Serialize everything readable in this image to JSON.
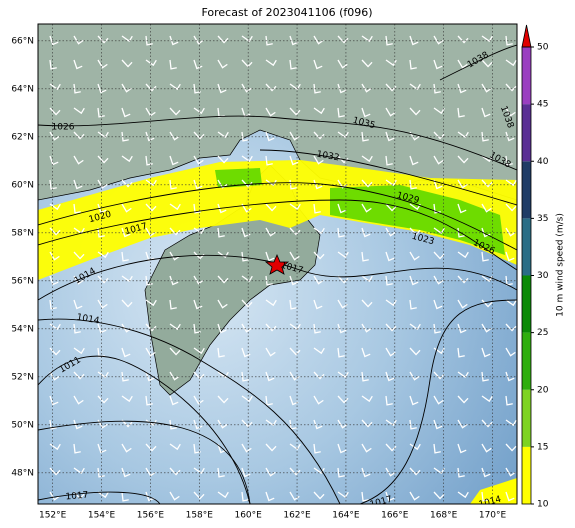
{
  "title": "Forecast of 2023041106 (f096)",
  "map": {
    "xlim": [
      151.4,
      171.0
    ],
    "ylim": [
      46.7,
      66.7
    ],
    "lon_ticks": [
      {
        "value": 152,
        "label": "152°E"
      },
      {
        "value": 154,
        "label": "154°E"
      },
      {
        "value": 156,
        "label": "156°E"
      },
      {
        "value": 158,
        "label": "158°E"
      },
      {
        "value": 160,
        "label": "160°E"
      },
      {
        "value": 162,
        "label": "162°E"
      },
      {
        "value": 164,
        "label": "164°E"
      },
      {
        "value": 166,
        "label": "166°E"
      },
      {
        "value": 168,
        "label": "168°E"
      },
      {
        "value": 170,
        "label": "170°E"
      }
    ],
    "lat_ticks": [
      {
        "value": 48,
        "label": "48°N"
      },
      {
        "value": 50,
        "label": "50°N"
      },
      {
        "value": 52,
        "label": "52°N"
      },
      {
        "value": 54,
        "label": "54°N"
      },
      {
        "value": 56,
        "label": "56°N"
      },
      {
        "value": 58,
        "label": "58°N"
      },
      {
        "value": 60,
        "label": "60°N"
      },
      {
        "value": 62,
        "label": "62°N"
      },
      {
        "value": 64,
        "label": "64°N"
      },
      {
        "value": 66,
        "label": "66°N"
      }
    ],
    "contour_labels": [
      "1026",
      "1035",
      "1032",
      "1038",
      "1038",
      "1038",
      "1029",
      "1023",
      "1026",
      "1020",
      "1017",
      "1014",
      "1017",
      "1014",
      "1011",
      "1017",
      "1017",
      "1014"
    ]
  },
  "colorbar": {
    "label": "10 m wind speed (m/s)",
    "lim": [
      10,
      50
    ],
    "ticks": [
      10,
      15,
      20,
      25,
      30,
      35,
      40,
      45,
      50
    ],
    "colors": [
      "#ffff00",
      "#7ed321",
      "#2fae0e",
      "#0b8a06",
      "#2a6d86",
      "#1f3c66",
      "#5a2f94",
      "#9a3fc0"
    ],
    "extend_color": "#e00000"
  }
}
